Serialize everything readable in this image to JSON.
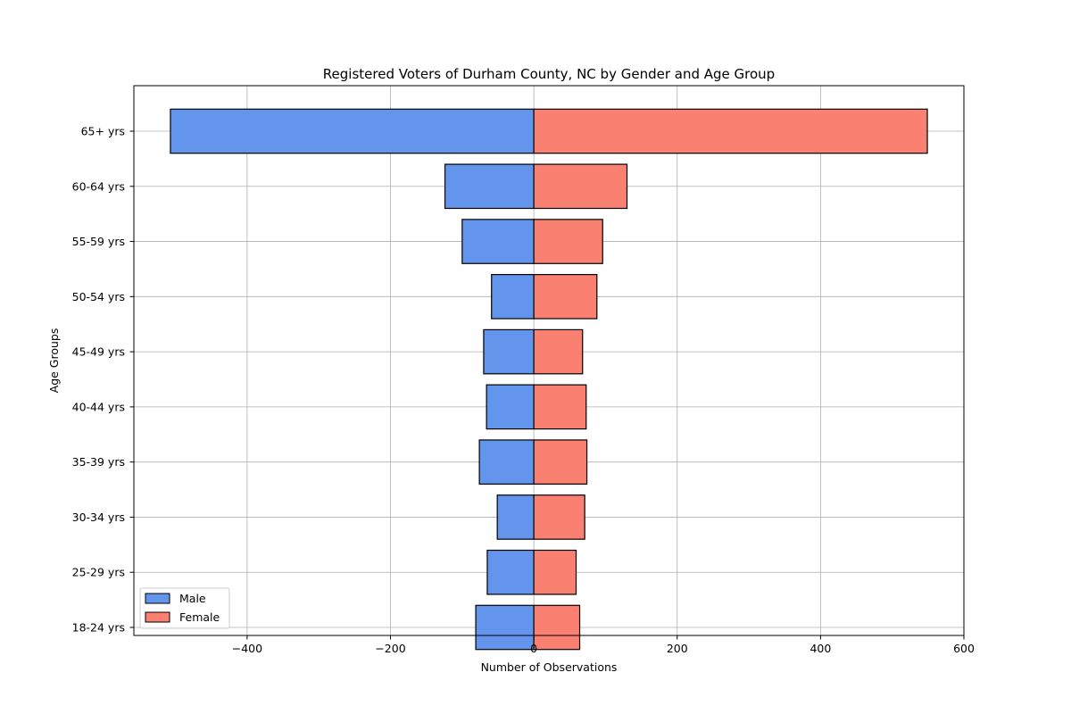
{
  "chart_data": {
    "type": "bar",
    "orientation": "horizontal",
    "title": "Registered Voters of Durham County, NC by Gender and Age Group",
    "xlabel": "Number of Observations",
    "ylabel": "Age Groups",
    "categories": [
      "18-24 yrs",
      "25-29 yrs",
      "30-34 yrs",
      "35-39 yrs",
      "40-44 yrs",
      "45-49 yrs",
      "50-54 yrs",
      "55-59 yrs",
      "60-64 yrs",
      "65+ yrs"
    ],
    "series": [
      {
        "name": "Male",
        "color": "#6495ED",
        "values": [
          -81,
          -65,
          -51,
          -76,
          -66,
          -70,
          -59,
          -100,
          -124,
          -507
        ]
      },
      {
        "name": "Female",
        "color": "#FA8072",
        "values": [
          64,
          59,
          71,
          74,
          73,
          68,
          88,
          96,
          130,
          549
        ]
      }
    ],
    "xlim": [
      -558,
      600
    ],
    "xticks": [
      -400,
      -200,
      0,
      200,
      400,
      600
    ],
    "xtick_labels": [
      "−400",
      "−200",
      "0",
      "200",
      "400",
      "600"
    ],
    "grid": true,
    "legend_position": "lower-left"
  }
}
